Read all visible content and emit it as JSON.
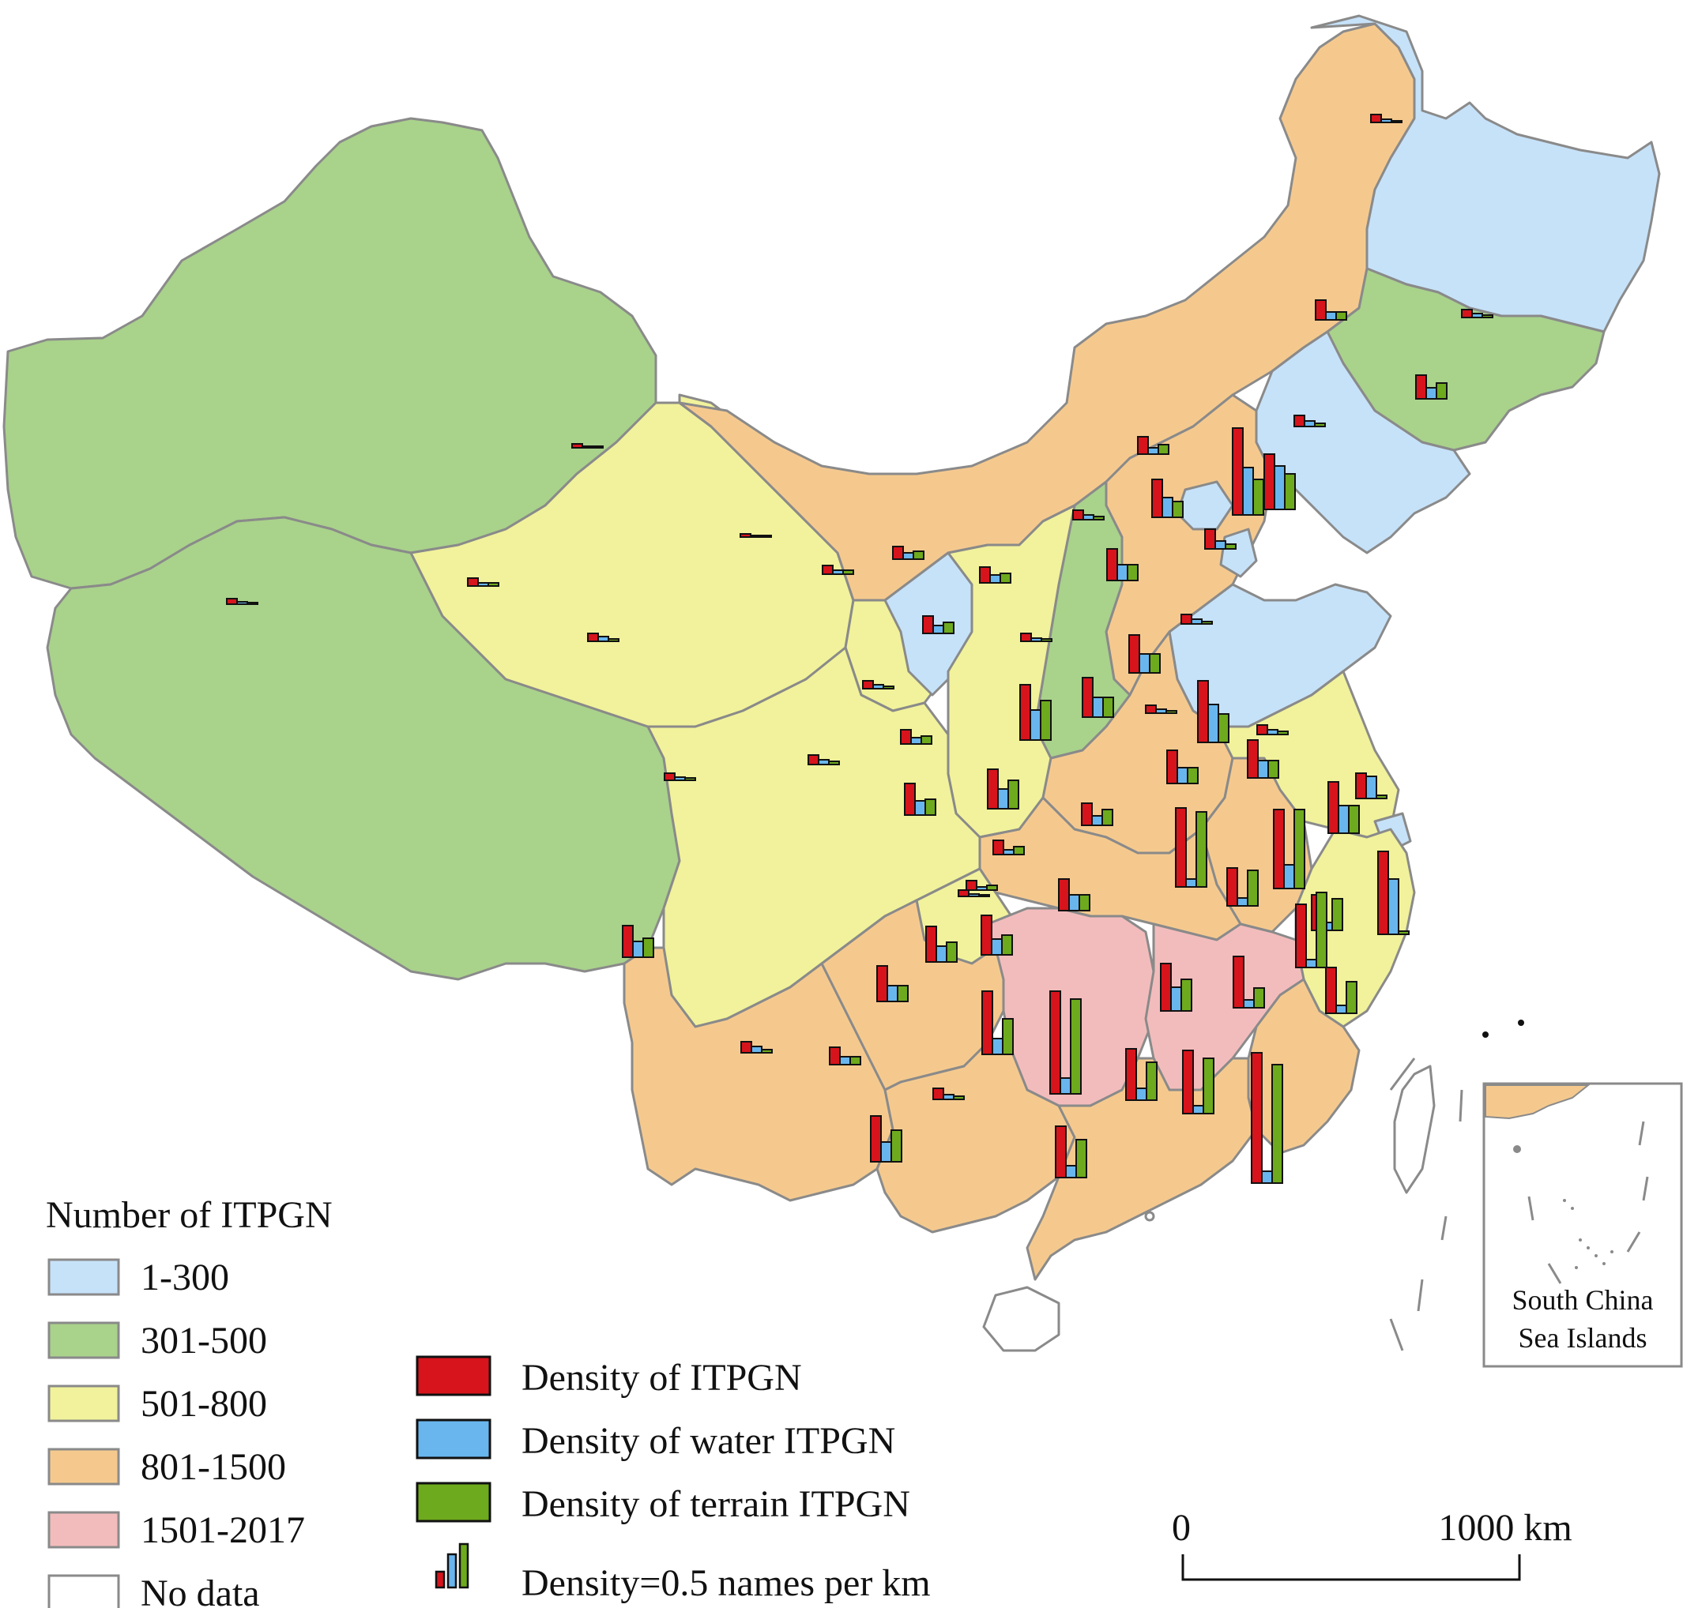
{
  "legend_class": {
    "title": "Number of ITPGN",
    "items": [
      {
        "label": "1-300",
        "color": "#c6e2f9"
      },
      {
        "label": "301-500",
        "color": "#a9d28b"
      },
      {
        "label": "501-800",
        "color": "#f1f29b"
      },
      {
        "label": "801-1500",
        "color": "#f5c98e"
      },
      {
        "label": "1501-2017",
        "color": "#f3bcbc"
      },
      {
        "label": "No data",
        "color": "#ffffff"
      }
    ]
  },
  "legend_density": {
    "items": [
      {
        "label": "Density of ITPGN",
        "color": "#d7141c"
      },
      {
        "label": "Density of water ITPGN",
        "color": "#69b6ee"
      },
      {
        "label": "Density of terrain ITPGN",
        "color": "#6eaa1e"
      }
    ],
    "reference_label": "Density=0.5 names per km",
    "reference_value": 0.5
  },
  "scalebar": {
    "start_label": "0",
    "end_label": "1000 km"
  },
  "inset": {
    "label_line1": "South China",
    "label_line2": "Sea Islands"
  },
  "colors": {
    "border": "#8a8a8a",
    "bar_outline": "#111111",
    "no_data": "#ffffff"
  }
}
